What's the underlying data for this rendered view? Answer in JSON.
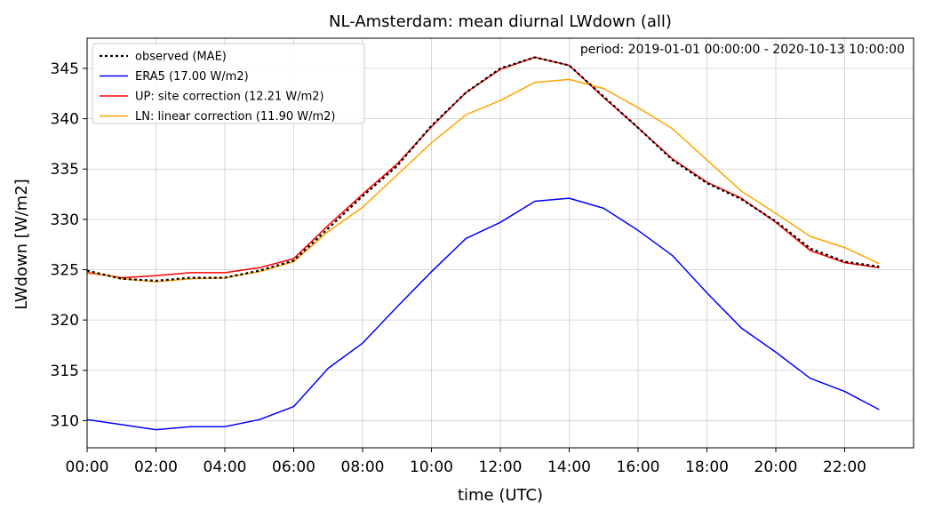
{
  "chart_data": {
    "type": "line",
    "title": "NL-Amsterdam: mean diurnal LWdown (all)",
    "annotation": "period: 2019-01-01 00:00:00 - 2020-10-13 10:00:00",
    "xlabel": "time (UTC)",
    "ylabel": "LWdown [W/m2]",
    "xlim": [
      0,
      24
    ],
    "ylim": [
      307.3,
      348.0
    ],
    "grid": true,
    "legend_position": "top-left",
    "x": [
      0,
      1,
      2,
      3,
      4,
      5,
      6,
      7,
      8,
      9,
      10,
      11,
      12,
      13,
      14,
      15,
      16,
      17,
      18,
      19,
      20,
      21,
      22,
      23
    ],
    "x_ticks": [
      0,
      2,
      4,
      6,
      8,
      10,
      12,
      14,
      16,
      18,
      20,
      22
    ],
    "x_tick_labels": [
      "00:00",
      "02:00",
      "04:00",
      "06:00",
      "08:00",
      "10:00",
      "12:00",
      "14:00",
      "16:00",
      "18:00",
      "20:00",
      "22:00"
    ],
    "y_ticks": [
      310,
      315,
      320,
      325,
      330,
      335,
      340,
      345
    ],
    "y_tick_labels": [
      "310",
      "315",
      "320",
      "325",
      "330",
      "335",
      "340",
      "345"
    ],
    "series": [
      {
        "name": "observed (MAE)",
        "color": "#000000",
        "dash": "dotted",
        "values": [
          324.9,
          324.1,
          323.9,
          324.2,
          324.2,
          324.9,
          325.9,
          329.1,
          332.3,
          335.3,
          339.3,
          342.6,
          345.0,
          346.1,
          345.3,
          342.2,
          339.1,
          335.9,
          333.6,
          332.0,
          329.8,
          327.1,
          325.8,
          325.3
        ]
      },
      {
        "name": "ERA5 (17.00 W/m2)",
        "color": "#0000ff",
        "dash": "solid",
        "values": [
          310.1,
          309.6,
          309.1,
          309.4,
          309.4,
          310.1,
          311.4,
          315.2,
          317.7,
          321.3,
          324.8,
          328.1,
          329.7,
          331.8,
          332.1,
          331.1,
          328.9,
          326.4,
          322.7,
          319.2,
          316.8,
          314.2,
          312.9,
          311.1
        ]
      },
      {
        "name": "UP: site correction (12.21 W/m2)",
        "color": "#ff0000",
        "dash": "solid",
        "values": [
          324.7,
          324.2,
          324.4,
          324.7,
          324.7,
          325.2,
          326.1,
          329.4,
          332.5,
          335.5,
          339.2,
          342.6,
          344.9,
          346.1,
          345.3,
          342.1,
          339.1,
          336.0,
          333.7,
          332.1,
          329.7,
          326.9,
          325.7,
          325.2
        ]
      },
      {
        "name": "LN: linear correction (11.90 W/m2)",
        "color": "#ffa500",
        "dash": "solid",
        "values": [
          324.8,
          324.1,
          323.8,
          324.1,
          324.2,
          324.8,
          325.8,
          328.8,
          331.2,
          334.4,
          337.6,
          340.4,
          341.8,
          343.6,
          343.9,
          343.0,
          341.1,
          339.0,
          335.9,
          332.8,
          330.6,
          328.3,
          327.2,
          325.6
        ]
      }
    ]
  }
}
